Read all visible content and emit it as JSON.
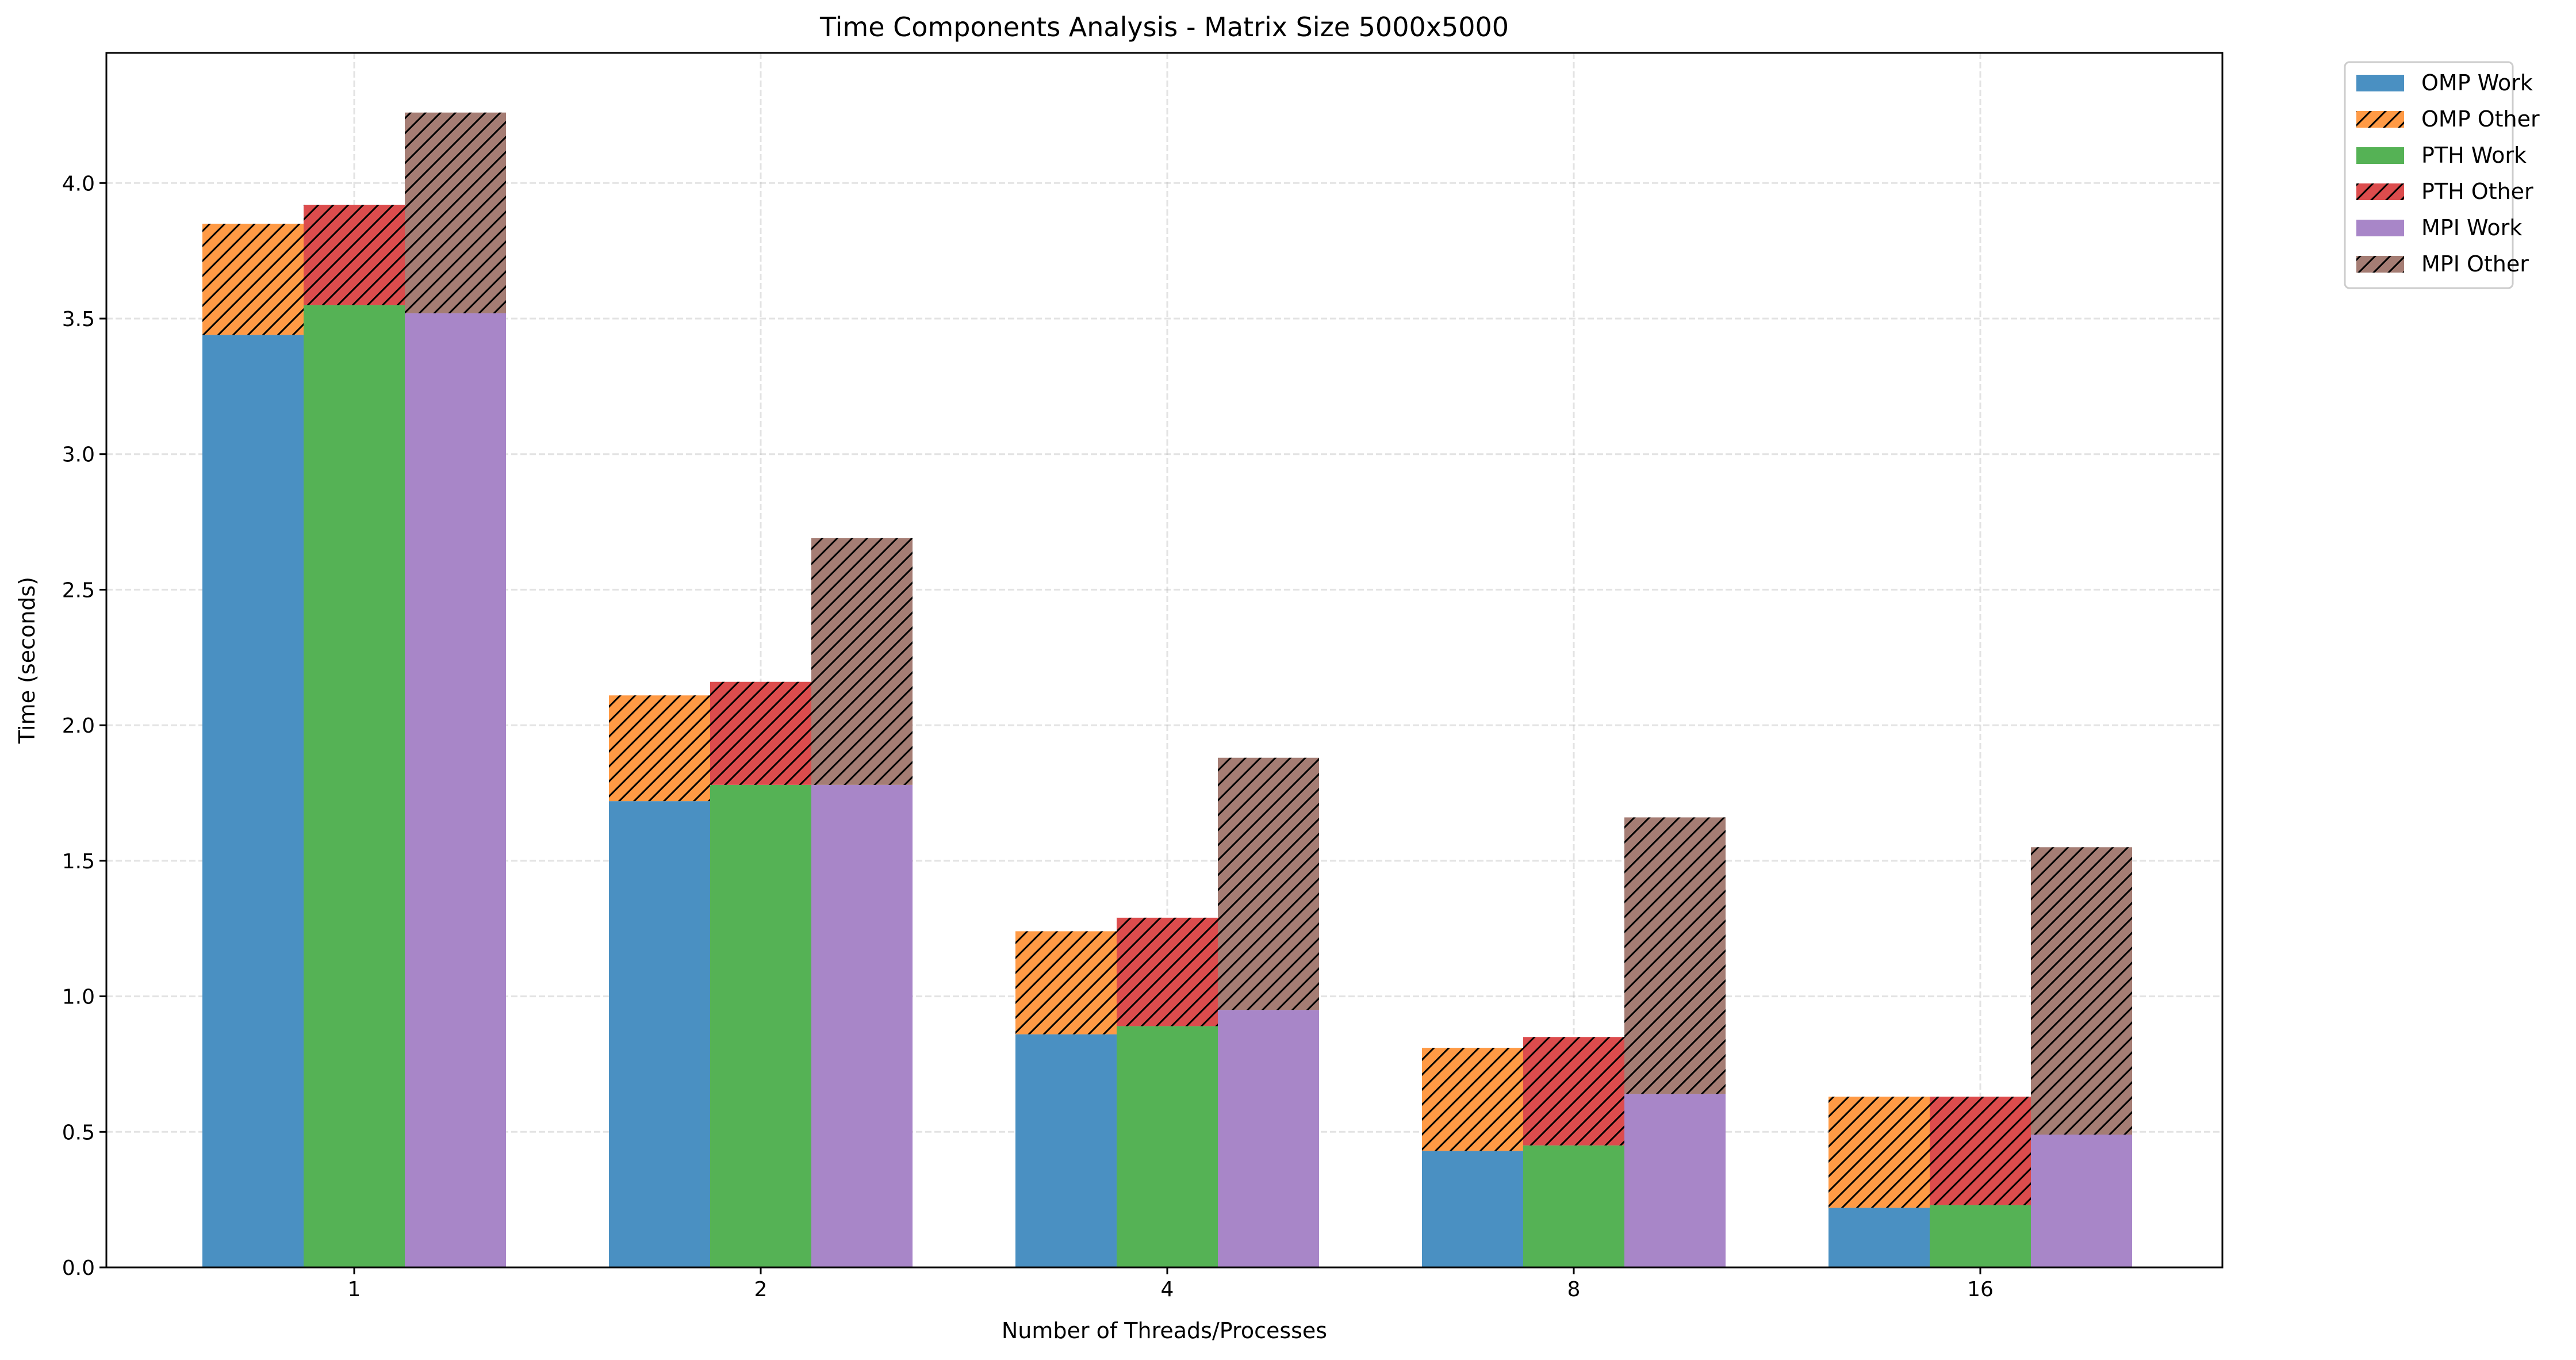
{
  "chart_data": {
    "type": "bar",
    "title": "Time Components Analysis - Matrix Size 5000x5000",
    "xlabel": "Number of Threads/Processes",
    "ylabel": "Time (seconds)",
    "categories": [
      "1",
      "2",
      "4",
      "8",
      "16"
    ],
    "ylim": [
      0,
      4.48
    ],
    "yticks": [
      "0.0",
      "0.5",
      "1.0",
      "1.5",
      "2.0",
      "2.5",
      "3.0",
      "3.5",
      "4.0"
    ],
    "grid": true,
    "legend_position": "outside-top-right",
    "groups": [
      {
        "name": "OMP",
        "work": [
          3.44,
          1.72,
          0.86,
          0.43,
          0.22
        ],
        "other": [
          0.41,
          0.39,
          0.38,
          0.38,
          0.41
        ],
        "work_color": "#4a90c2",
        "other_color": "#ff9a45"
      },
      {
        "name": "PTH",
        "work": [
          3.55,
          1.78,
          0.89,
          0.45,
          0.23
        ],
        "other": [
          0.37,
          0.38,
          0.4,
          0.4,
          0.4
        ],
        "work_color": "#55b255",
        "other_color": "#dc4c4d"
      },
      {
        "name": "MPI",
        "work": [
          3.52,
          1.78,
          0.95,
          0.64,
          0.49
        ],
        "other": [
          0.74,
          0.91,
          0.93,
          1.02,
          1.06
        ],
        "work_color": "#a886c8",
        "other_color": "#a57d74"
      }
    ],
    "legend": [
      "OMP Work",
      "OMP Other",
      "PTH Work",
      "PTH Other",
      "MPI Work",
      "MPI Other"
    ]
  }
}
